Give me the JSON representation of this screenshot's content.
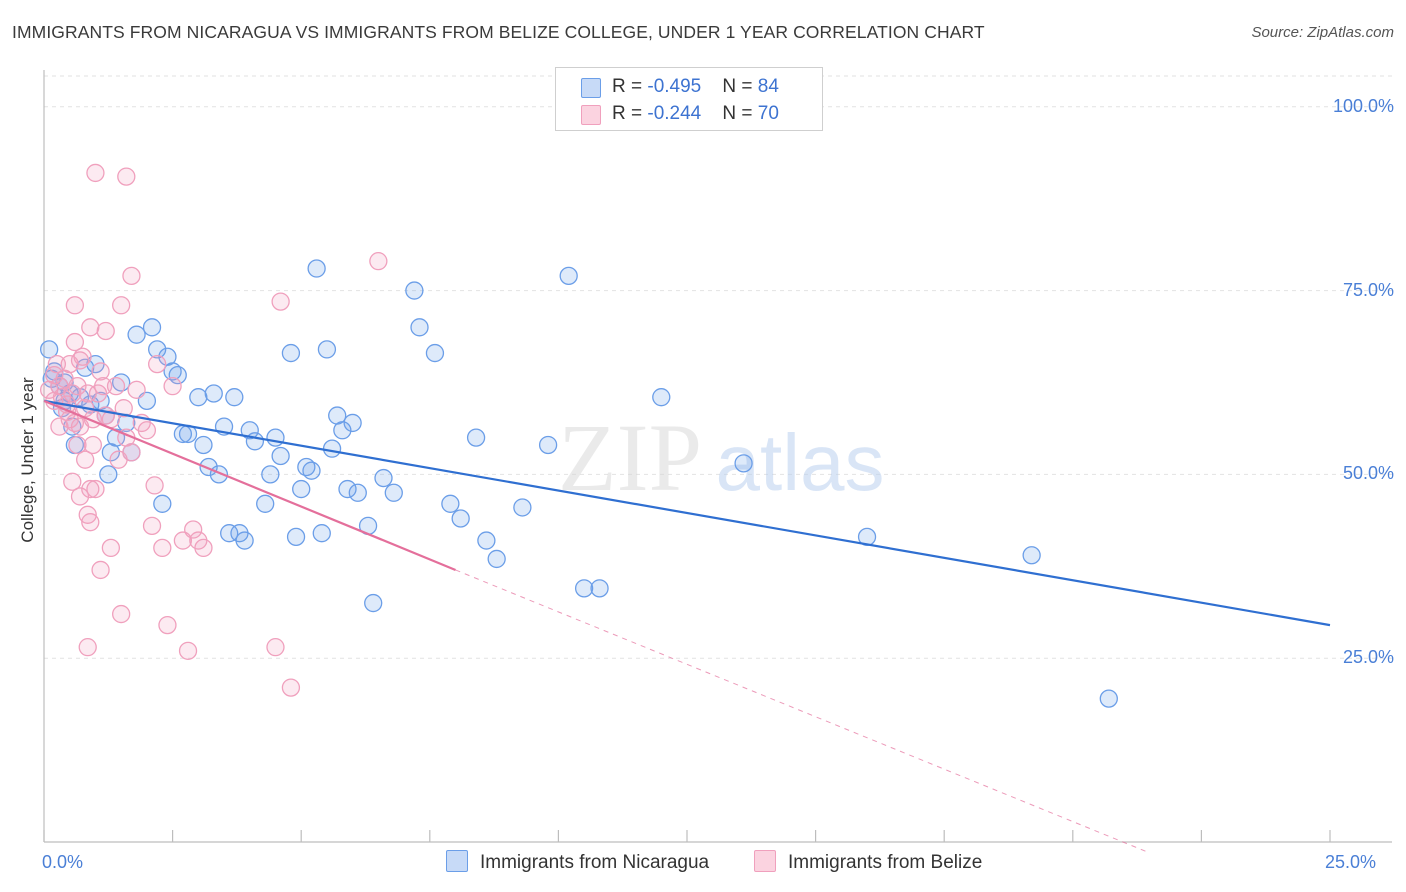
{
  "title": "IMMIGRANTS FROM NICARAGUA VS IMMIGRANTS FROM BELIZE COLLEGE, UNDER 1 YEAR CORRELATION CHART",
  "source": "Source: ZipAtlas.com",
  "colors": {
    "blue": "#6b9ee8",
    "blue_line": "#2f6fd1",
    "pink": "#f0a0bd",
    "pink_line": "#e46f9b",
    "tick": "#4a7fd6"
  },
  "legend": {
    "rows": [
      {
        "r_label": "R = ",
        "r_value": "-0.495",
        "n_label": "N = ",
        "n_value": "84"
      },
      {
        "r_label": "R = ",
        "r_value": "-0.244",
        "n_label": "N = ",
        "n_value": "70"
      }
    ]
  },
  "watermark": {
    "zip": "ZIP",
    "atlas": "atlas"
  },
  "chart_data": {
    "type": "scatter",
    "title": "IMMIGRANTS FROM NICARAGUA VS IMMIGRANTS FROM BELIZE COLLEGE, UNDER 1 YEAR CORRELATION CHART",
    "xlabel": "",
    "ylabel": "College, Under 1 year",
    "xlim": [
      0,
      25
    ],
    "ylim": [
      0,
      105
    ],
    "x_tick_labels": [
      "0.0%",
      "25.0%"
    ],
    "y_ticks": [
      25,
      50,
      75,
      100
    ],
    "y_tick_labels": [
      "25.0%",
      "50.0%",
      "75.0%",
      "100.0%"
    ],
    "series": [
      {
        "name": "Immigrants from Nicaragua",
        "color": "blue",
        "r": -0.495,
        "n": 84,
        "trend": {
          "x0": 0,
          "y0": 60.0,
          "x1": 25,
          "y1": 29.5
        },
        "points": [
          [
            0.1,
            67
          ],
          [
            0.2,
            64
          ],
          [
            0.3,
            62
          ],
          [
            0.4,
            60
          ],
          [
            0.5,
            61
          ],
          [
            0.4,
            62.5
          ],
          [
            0.6,
            54
          ],
          [
            0.7,
            60.5
          ],
          [
            0.9,
            59.5
          ],
          [
            1.0,
            65
          ],
          [
            1.1,
            60
          ],
          [
            1.2,
            58
          ],
          [
            1.3,
            53
          ],
          [
            1.4,
            55
          ],
          [
            1.5,
            62.5
          ],
          [
            1.6,
            57
          ],
          [
            1.7,
            53
          ],
          [
            1.8,
            69
          ],
          [
            2.0,
            60
          ],
          [
            2.1,
            70
          ],
          [
            2.2,
            67
          ],
          [
            2.4,
            66
          ],
          [
            2.5,
            64
          ],
          [
            2.6,
            63.5
          ],
          [
            2.7,
            55.5
          ],
          [
            2.8,
            55.5
          ],
          [
            3.0,
            60.5
          ],
          [
            3.1,
            54
          ],
          [
            3.2,
            51
          ],
          [
            3.3,
            61
          ],
          [
            3.4,
            50
          ],
          [
            3.5,
            56.5
          ],
          [
            3.6,
            42
          ],
          [
            3.7,
            60.5
          ],
          [
            3.8,
            42
          ],
          [
            4.0,
            56
          ],
          [
            4.1,
            54.5
          ],
          [
            4.3,
            46
          ],
          [
            4.4,
            50
          ],
          [
            4.5,
            55
          ],
          [
            4.6,
            52.5
          ],
          [
            4.8,
            66.5
          ],
          [
            4.9,
            41.5
          ],
          [
            5.0,
            48
          ],
          [
            5.1,
            51
          ],
          [
            5.2,
            50.5
          ],
          [
            5.3,
            78
          ],
          [
            5.4,
            42
          ],
          [
            5.5,
            67
          ],
          [
            5.6,
            53.5
          ],
          [
            5.7,
            58
          ],
          [
            5.8,
            56
          ],
          [
            5.9,
            48
          ],
          [
            6.1,
            47.5
          ],
          [
            6.3,
            43
          ],
          [
            6.4,
            32.5
          ],
          [
            6.6,
            49.5
          ],
          [
            6.8,
            47.5
          ],
          [
            7.2,
            75
          ],
          [
            7.3,
            70
          ],
          [
            7.6,
            66.5
          ],
          [
            7.9,
            46
          ],
          [
            8.1,
            44
          ],
          [
            8.4,
            55
          ],
          [
            8.6,
            41
          ],
          [
            8.8,
            38.5
          ],
          [
            9.3,
            45.5
          ],
          [
            9.8,
            54
          ],
          [
            10.2,
            77
          ],
          [
            10.5,
            34.5
          ],
          [
            10.8,
            34.5
          ],
          [
            12.0,
            60.5
          ],
          [
            13.6,
            51.5
          ],
          [
            16.0,
            41.5
          ],
          [
            19.2,
            39
          ],
          [
            20.7,
            19.5
          ],
          [
            0.15,
            63
          ],
          [
            0.35,
            59
          ],
          [
            0.55,
            56.5
          ],
          [
            0.8,
            64.5
          ],
          [
            1.25,
            50
          ],
          [
            2.3,
            46
          ],
          [
            3.9,
            41
          ],
          [
            6.0,
            57
          ]
        ]
      },
      {
        "name": "Immigrants from Belize",
        "color": "pink",
        "r": -0.244,
        "n": 70,
        "trend": {
          "x0": 0,
          "y0": 60.0,
          "x1": 8.0,
          "y1": 37.0,
          "dash_x1": 21.5,
          "dash_y1": -1.5
        },
        "points": [
          [
            0.1,
            61.5
          ],
          [
            0.2,
            63.5
          ],
          [
            0.25,
            65
          ],
          [
            0.3,
            62
          ],
          [
            0.35,
            60.5
          ],
          [
            0.4,
            63
          ],
          [
            0.45,
            58.5
          ],
          [
            0.5,
            65
          ],
          [
            0.5,
            57.5
          ],
          [
            0.55,
            61
          ],
          [
            0.6,
            68
          ],
          [
            0.65,
            62
          ],
          [
            0.7,
            65.5
          ],
          [
            0.75,
            66
          ],
          [
            0.8,
            59
          ],
          [
            0.85,
            61
          ],
          [
            0.9,
            70
          ],
          [
            0.95,
            57.5
          ],
          [
            0.6,
            73
          ],
          [
            0.55,
            49
          ],
          [
            0.6,
            57
          ],
          [
            0.65,
            54
          ],
          [
            0.7,
            56.5
          ],
          [
            0.8,
            52
          ],
          [
            0.85,
            44.5
          ],
          [
            0.9,
            48
          ],
          [
            1.0,
            48
          ],
          [
            1.05,
            61
          ],
          [
            1.1,
            64
          ],
          [
            1.15,
            62
          ],
          [
            1.2,
            69.5
          ],
          [
            1.3,
            57.5
          ],
          [
            1.4,
            62
          ],
          [
            1.45,
            52
          ],
          [
            1.5,
            73
          ],
          [
            1.55,
            59
          ],
          [
            1.6,
            55
          ],
          [
            1.7,
            77
          ],
          [
            1.8,
            61.5
          ],
          [
            1.9,
            57
          ],
          [
            2.0,
            56
          ],
          [
            2.1,
            43
          ],
          [
            2.15,
            48.5
          ],
          [
            2.2,
            65
          ],
          [
            2.3,
            40
          ],
          [
            2.4,
            29.5
          ],
          [
            2.5,
            62
          ],
          [
            2.7,
            41
          ],
          [
            2.8,
            26
          ],
          [
            2.9,
            42.5
          ],
          [
            3.0,
            41
          ],
          [
            3.1,
            40
          ],
          [
            1.0,
            91
          ],
          [
            1.6,
            90.5
          ],
          [
            0.9,
            43.5
          ],
          [
            1.1,
            37
          ],
          [
            1.3,
            40
          ],
          [
            1.5,
            31
          ],
          [
            0.85,
            26.5
          ],
          [
            1.7,
            53
          ],
          [
            4.6,
            73.5
          ],
          [
            4.5,
            26.5
          ],
          [
            4.8,
            21
          ],
          [
            6.5,
            79
          ],
          [
            0.3,
            56.5
          ],
          [
            0.45,
            59.5
          ],
          [
            0.7,
            47
          ],
          [
            1.2,
            58
          ],
          [
            0.95,
            54
          ],
          [
            0.2,
            60
          ]
        ]
      }
    ]
  },
  "bottom_legend": [
    {
      "label": "Immigrants from Nicaragua",
      "color": "blue"
    },
    {
      "label": "Immigrants from Belize",
      "color": "pink"
    }
  ]
}
